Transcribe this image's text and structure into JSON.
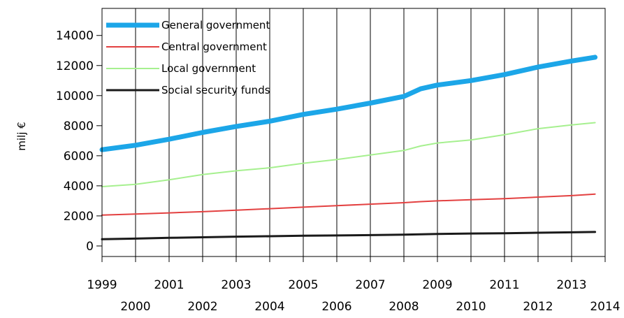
{
  "chart_data": {
    "type": "line",
    "title": "",
    "xlabel": "",
    "ylabel": "milj €",
    "xlim": [
      1999,
      2014
    ],
    "ylim": [
      -700,
      15800
    ],
    "x_ticks": [
      1999,
      2000,
      2001,
      2002,
      2003,
      2004,
      2005,
      2006,
      2007,
      2008,
      2009,
      2010,
      2011,
      2012,
      2013,
      2014
    ],
    "y_ticks": [
      0,
      2000,
      4000,
      6000,
      8000,
      10000,
      12000,
      14000
    ],
    "grid": "vertical",
    "legend_position": "top-left",
    "x": [
      1999,
      2000,
      2001,
      2002,
      2003,
      2004,
      2005,
      2006,
      2007,
      2008,
      2008.5,
      2009,
      2010,
      2011,
      2012,
      2013,
      2013.7
    ],
    "series": [
      {
        "name": "General government",
        "color": "#1ca6e8",
        "width": 7,
        "values": [
          6400,
          6700,
          7100,
          7550,
          7950,
          8300,
          8750,
          9100,
          9500,
          9950,
          10450,
          10700,
          11000,
          11400,
          11900,
          12300,
          12550
        ]
      },
      {
        "name": "Central government",
        "color": "#e34141",
        "width": 2,
        "values": [
          2050,
          2120,
          2200,
          2280,
          2380,
          2480,
          2580,
          2680,
          2780,
          2880,
          2950,
          3000,
          3080,
          3150,
          3250,
          3350,
          3450
        ]
      },
      {
        "name": "Local government",
        "color": "#a6f08f",
        "width": 2,
        "values": [
          3950,
          4100,
          4400,
          4750,
          5000,
          5200,
          5500,
          5750,
          6050,
          6350,
          6650,
          6850,
          7050,
          7400,
          7800,
          8050,
          8200
        ]
      },
      {
        "name": "Social security funds",
        "color": "#1a1a1a",
        "width": 3,
        "values": [
          450,
          490,
          540,
          580,
          620,
          650,
          680,
          700,
          720,
          750,
          780,
          800,
          830,
          850,
          880,
          910,
          930
        ]
      }
    ]
  }
}
